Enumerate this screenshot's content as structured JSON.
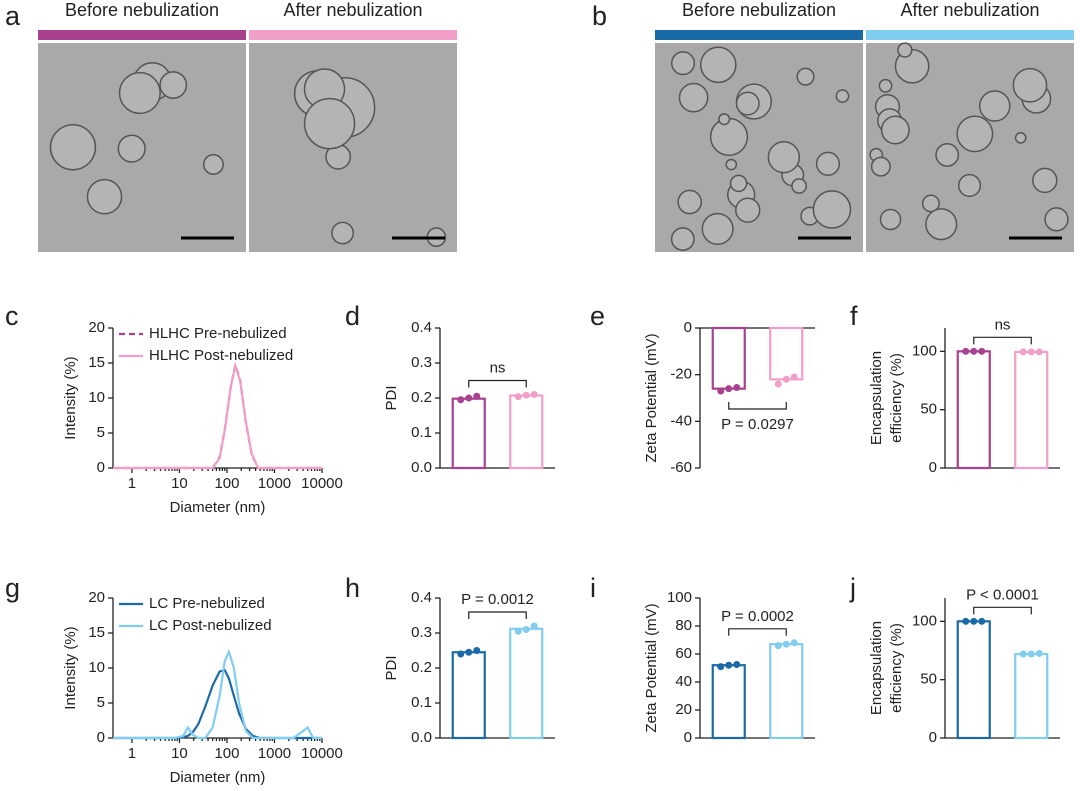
{
  "micrographs": [
    {
      "panel": "a",
      "labels": [
        "Before nebulization",
        "After nebulization"
      ],
      "colors": [
        "#a8418f",
        "#f19fc8"
      ]
    },
    {
      "panel": "b",
      "labels": [
        "Before nebulization",
        "After nebulization"
      ],
      "colors": [
        "#1b6aa8",
        "#80cdef"
      ]
    }
  ],
  "chart_data": [
    {
      "panel": "c",
      "type": "line",
      "xscale": "log",
      "legend": "upper left",
      "ylabel": [
        "Intensity (%)"
      ],
      "xlabel": "Diameter (nm)",
      "xlim": [
        0.4,
        10000
      ],
      "xticks": [
        1,
        10,
        100,
        1000,
        10000
      ],
      "ylim": [
        0,
        20
      ],
      "yticks": [
        0,
        5,
        10,
        15,
        20
      ],
      "x": [
        0.4,
        1,
        10,
        50,
        70,
        90,
        120,
        150,
        190,
        250,
        330,
        450,
        1000,
        10000
      ],
      "series": [
        {
          "name": "HLHC Pre-nebulized",
          "color": "#a8418f",
          "dashed": true,
          "values": [
            0,
            0,
            0,
            0,
            1.5,
            5.5,
            11.5,
            14.7,
            12.5,
            6.5,
            2,
            0,
            0,
            0
          ]
        },
        {
          "name": "HLHC Post-nebulized",
          "color": "#f19fc8",
          "dashed": false,
          "values": [
            0,
            0,
            0,
            0,
            1.4,
            5.4,
            11.6,
            14.6,
            12.4,
            6.6,
            2.1,
            0,
            0,
            0
          ]
        }
      ]
    },
    {
      "panel": "d",
      "type": "bar",
      "ylabel": [
        "PDI"
      ],
      "ylim": [
        0,
        0.4
      ],
      "yticks": [
        {
          "value": 0,
          "label": "0.0"
        },
        0.1,
        0.2,
        0.3,
        0.4
      ],
      "categories": [
        null,
        null
      ],
      "values": [
        0.198,
        0.207
      ],
      "colors": [
        "#a8418f",
        "#f19fc8"
      ],
      "points": [
        [
          0.195,
          0.2,
          0.205
        ],
        [
          0.204,
          0.208,
          0.21
        ]
      ],
      "annotation": "ns"
    },
    {
      "panel": "e",
      "type": "bar",
      "ylabel": [
        "Zeta Potential (mV)"
      ],
      "ylim": [
        -60,
        0
      ],
      "yticks": [
        0,
        -20,
        -40,
        -60
      ],
      "categories": [
        null,
        null
      ],
      "values": [
        -26,
        -22
      ],
      "colors": [
        "#a8418f",
        "#f19fc8"
      ],
      "points": [
        [
          -27,
          -26,
          -25.5
        ],
        [
          -24,
          -22,
          -21
        ]
      ],
      "annotation": "P = 0.0297"
    },
    {
      "panel": "f",
      "type": "bar",
      "ylabel": [
        "Encapsulation",
        "efficiency (%)"
      ],
      "ylim": [
        0,
        120
      ],
      "yticks": [
        0,
        50,
        100
      ],
      "categories": [
        null,
        null
      ],
      "values": [
        100,
        99.5
      ],
      "colors": [
        "#a8418f",
        "#f19fc8"
      ],
      "points": [
        [
          100,
          100,
          100
        ],
        [
          99.5,
          99.5,
          99.5
        ]
      ],
      "annotation": "ns"
    },
    {
      "panel": "g",
      "type": "line",
      "xscale": "log",
      "legend": "upper left",
      "ylabel": [
        "Intensity (%)"
      ],
      "xlabel": "Diameter (nm)",
      "xlim": [
        0.4,
        10000
      ],
      "xticks": [
        1,
        10,
        100,
        1000,
        10000
      ],
      "ylim": [
        0,
        20
      ],
      "yticks": [
        0,
        5,
        10,
        15,
        20
      ],
      "x": [
        0.4,
        1,
        8,
        12,
        15,
        19,
        25,
        35,
        50,
        70,
        90,
        110,
        140,
        180,
        250,
        350,
        500,
        1000,
        2500,
        4000,
        5000,
        6500,
        10000
      ],
      "series": [
        {
          "name": "LC Pre-nebulized",
          "color": "#1b6aa8",
          "dashed": false,
          "values": [
            0,
            0,
            0,
            0.1,
            0.3,
            0.8,
            2,
            4.5,
            7.5,
            9.5,
            9.7,
            8.5,
            6,
            3.5,
            1.3,
            0.3,
            0,
            0,
            0,
            0,
            0,
            0,
            0
          ]
        },
        {
          "name": "LC Post-nebulized",
          "color": "#80cdef",
          "dashed": false,
          "values": [
            0,
            0,
            0,
            0.3,
            1.5,
            0.5,
            0,
            0,
            1.5,
            6,
            11,
            12.3,
            10,
            5,
            1,
            0,
            0,
            0,
            0,
            1,
            1.5,
            0,
            0
          ]
        }
      ]
    },
    {
      "panel": "h",
      "type": "bar",
      "ylabel": [
        "PDI"
      ],
      "ylim": [
        0,
        0.4
      ],
      "yticks": [
        {
          "value": 0,
          "label": "0.0"
        },
        0.1,
        0.2,
        0.3,
        0.4
      ],
      "categories": [
        null,
        null
      ],
      "values": [
        0.245,
        0.312
      ],
      "colors": [
        "#1b6aa8",
        "#80cdef"
      ],
      "points": [
        [
          0.24,
          0.245,
          0.25
        ],
        [
          0.305,
          0.31,
          0.32
        ]
      ],
      "annotation": "P = 0.0012"
    },
    {
      "panel": "i",
      "type": "bar",
      "ylabel": [
        "Zeta Potential (mV)"
      ],
      "ylim": [
        0,
        100
      ],
      "yticks": [
        0,
        20,
        40,
        60,
        80,
        100
      ],
      "categories": [
        null,
        null
      ],
      "values": [
        52,
        67
      ],
      "colors": [
        "#1b6aa8",
        "#80cdef"
      ],
      "points": [
        [
          51,
          52,
          52.5
        ],
        [
          66,
          67,
          68
        ]
      ],
      "annotation": "P = 0.0002"
    },
    {
      "panel": "j",
      "type": "bar",
      "ylabel": [
        "Encapsulation",
        "efficiency (%)"
      ],
      "ylim": [
        0,
        120
      ],
      "yticks": [
        0,
        50,
        100
      ],
      "categories": [
        null,
        null
      ],
      "values": [
        100,
        72
      ],
      "colors": [
        "#1b6aa8",
        "#80cdef"
      ],
      "points": [
        [
          100,
          100,
          100
        ],
        [
          72,
          72,
          72.5
        ]
      ],
      "annotation": "P < 0.0001"
    }
  ]
}
